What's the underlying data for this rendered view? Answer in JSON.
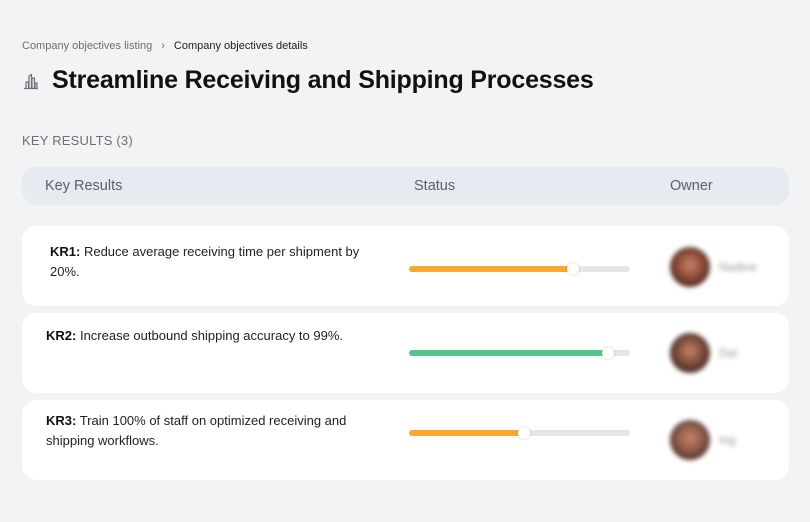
{
  "breadcrumb": {
    "parent": "Company objectives listing",
    "separator": "›",
    "current": "Company objectives details"
  },
  "page": {
    "title_icon": "buildings-icon",
    "title": "Streamline Receiving and Shipping Processes"
  },
  "key_results_section": {
    "label": "KEY RESULTS (3)",
    "columns": {
      "key_results": "Key Results",
      "status": "Status",
      "owner": "Owner"
    },
    "rows": [
      {
        "id": "KR1:",
        "text": " Reduce average receiving time per shipment by 20%.",
        "progress": 74,
        "status_color": "#fca72f",
        "owner": "Nadine",
        "avatar_color": "#8a4a34"
      },
      {
        "id": "KR2:",
        "text": " Increase outbound shipping accuracy to 99%.",
        "progress": 90,
        "status_color": "#56c58a",
        "owner": "Dai",
        "avatar_color": "#7a4a3a"
      },
      {
        "id": "KR3:",
        "text": " Train 100% of staff on optimized receiving and shipping workflows.",
        "progress": 52,
        "status_color": "#fca72f",
        "owner": "Ing",
        "avatar_color": "#8c5a48"
      }
    ]
  },
  "colors": {
    "background": "#f2f3f5",
    "header_bg": "#e7eaf1",
    "card_bg": "#ffffff",
    "track": "#e6e6e6",
    "warning": "#fca72f",
    "success": "#56c58a"
  }
}
